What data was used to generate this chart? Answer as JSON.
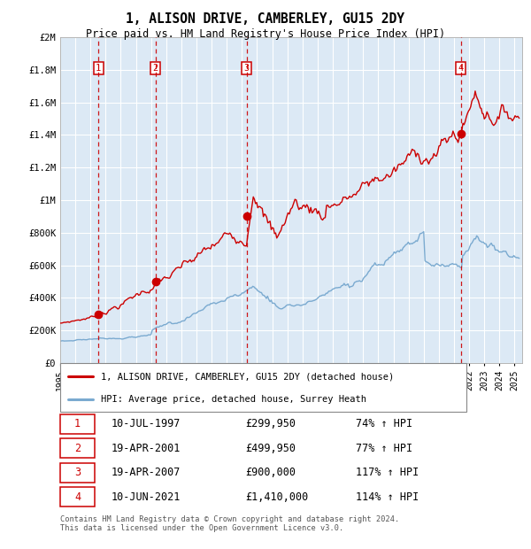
{
  "title": "1, ALISON DRIVE, CAMBERLEY, GU15 2DY",
  "subtitle": "Price paid vs. HM Land Registry's House Price Index (HPI)",
  "background_color": "#ffffff",
  "plot_bg_color": "#dce9f5",
  "red_line_color": "#cc0000",
  "blue_line_color": "#7aaad0",
  "sale_points": [
    {
      "date_year": 1997.53,
      "price": 299950,
      "label": "1"
    },
    {
      "date_year": 2001.3,
      "price": 499950,
      "label": "2"
    },
    {
      "date_year": 2007.3,
      "price": 900000,
      "label": "3"
    },
    {
      "date_year": 2021.44,
      "price": 1410000,
      "label": "4"
    }
  ],
  "sale_vlines": [
    1997.53,
    2001.3,
    2007.3,
    2021.44
  ],
  "ylim": [
    0,
    2000000
  ],
  "xlim_start": 1995.0,
  "xlim_end": 2025.5,
  "yticks": [
    0,
    200000,
    400000,
    600000,
    800000,
    1000000,
    1200000,
    1400000,
    1600000,
    1800000,
    2000000
  ],
  "ytick_labels": [
    "£0",
    "£200K",
    "£400K",
    "£600K",
    "£800K",
    "£1M",
    "£1.2M",
    "£1.4M",
    "£1.6M",
    "£1.8M",
    "£2M"
  ],
  "xticks": [
    1995,
    1996,
    1997,
    1998,
    1999,
    2000,
    2001,
    2002,
    2003,
    2004,
    2005,
    2006,
    2007,
    2008,
    2009,
    2010,
    2011,
    2012,
    2013,
    2014,
    2015,
    2016,
    2017,
    2018,
    2019,
    2020,
    2021,
    2022,
    2023,
    2024,
    2025
  ],
  "legend_entries": [
    {
      "label": "1, ALISON DRIVE, CAMBERLEY, GU15 2DY (detached house)",
      "color": "#cc0000"
    },
    {
      "label": "HPI: Average price, detached house, Surrey Heath",
      "color": "#7aaad0"
    }
  ],
  "table_rows": [
    {
      "num": "1",
      "date": "10-JUL-1997",
      "price": "£299,950",
      "hpi": "74% ↑ HPI"
    },
    {
      "num": "2",
      "date": "19-APR-2001",
      "price": "£499,950",
      "hpi": "77% ↑ HPI"
    },
    {
      "num": "3",
      "date": "19-APR-2007",
      "price": "£900,000",
      "hpi": "117% ↑ HPI"
    },
    {
      "num": "4",
      "date": "10-JUN-2021",
      "price": "£1,410,000",
      "hpi": "114% ↑ HPI"
    }
  ],
  "footer": "Contains HM Land Registry data © Crown copyright and database right 2024.\nThis data is licensed under the Open Government Licence v3.0."
}
